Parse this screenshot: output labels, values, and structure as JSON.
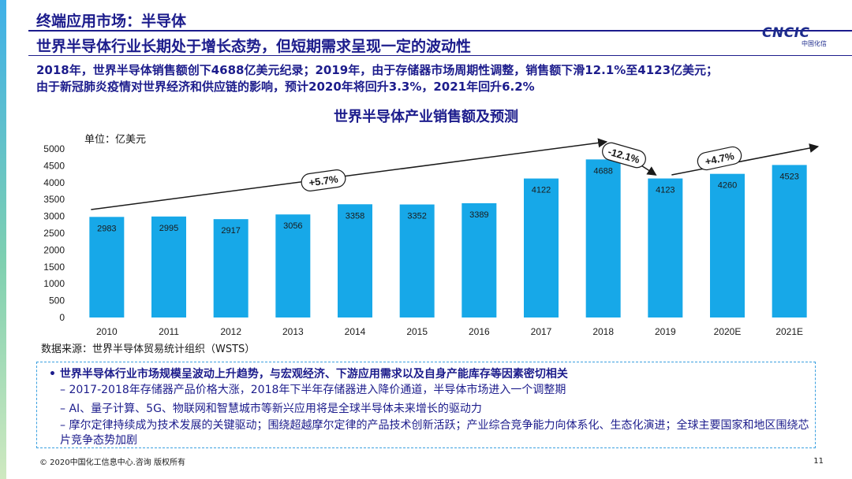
{
  "header": {
    "title": "终端应用市场：半导体",
    "subtitle": "世界半导体行业长期处于增长态势，但短期需求呈现一定的波动性"
  },
  "logo": {
    "text": "CNCIC",
    "sub": "中国化信"
  },
  "summary": {
    "line1": "2018年，世界半导体销售额创下4688亿美元纪录；2019年，由于存储器市场周期性调整，销售额下滑12.1%至4123亿美元；",
    "line2": "由于新冠肺炎疫情对世界经济和供应链的影响，预计2020年将回升3.3%，2021年回升6.2%"
  },
  "chart_data": {
    "type": "bar",
    "title": "世界半导体产业销售额及预测",
    "unit_label": "单位：亿美元",
    "categories": [
      "2010",
      "2011",
      "2012",
      "2013",
      "2014",
      "2015",
      "2016",
      "2017",
      "2018",
      "2019",
      "2020E",
      "2021E"
    ],
    "values": [
      2983,
      2995,
      2917,
      3056,
      3358,
      3352,
      3389,
      4122,
      4688,
      4123,
      4260,
      4523
    ],
    "ylim": [
      0,
      5000
    ],
    "yticks": [
      0,
      500,
      1000,
      1500,
      2000,
      2500,
      3000,
      3500,
      4000,
      4500,
      5000
    ],
    "bar_color": "#17a8e8",
    "annotations": [
      {
        "text": "+5.7%",
        "from": "2010",
        "to": "2018"
      },
      {
        "text": "-12.1%",
        "from": "2018",
        "to": "2019"
      },
      {
        "text": "+4.7%",
        "from": "2019",
        "to": "2021E"
      }
    ]
  },
  "source": "数据来源：世界半导体贸易统计组织（WSTS）",
  "notes": {
    "main": "•  世界半导体行业市场规模呈波动上升趋势，与宏观经济、下游应用需求以及自身产能库存等因素密切相关",
    "items": [
      "–   2017-2018年存储器产品价格大涨，2018年下半年存储器进入降价通道，半导体市场进入一个调整期",
      "–   AI、量子计算、5G、物联网和智慧城市等新兴应用将是全球半导体未来增长的驱动力",
      "–   摩尔定律持续成为技术发展的关键驱动；围绕超越摩尔定律的产品技术创新活跃；产业综合竞争能力向体系化、生态化演进；全球主要国家和地区围绕芯片竞争态势加剧"
    ]
  },
  "footer": {
    "copyright": "© 2020中国化工信息中心.咨询 版权所有",
    "page": "11"
  }
}
